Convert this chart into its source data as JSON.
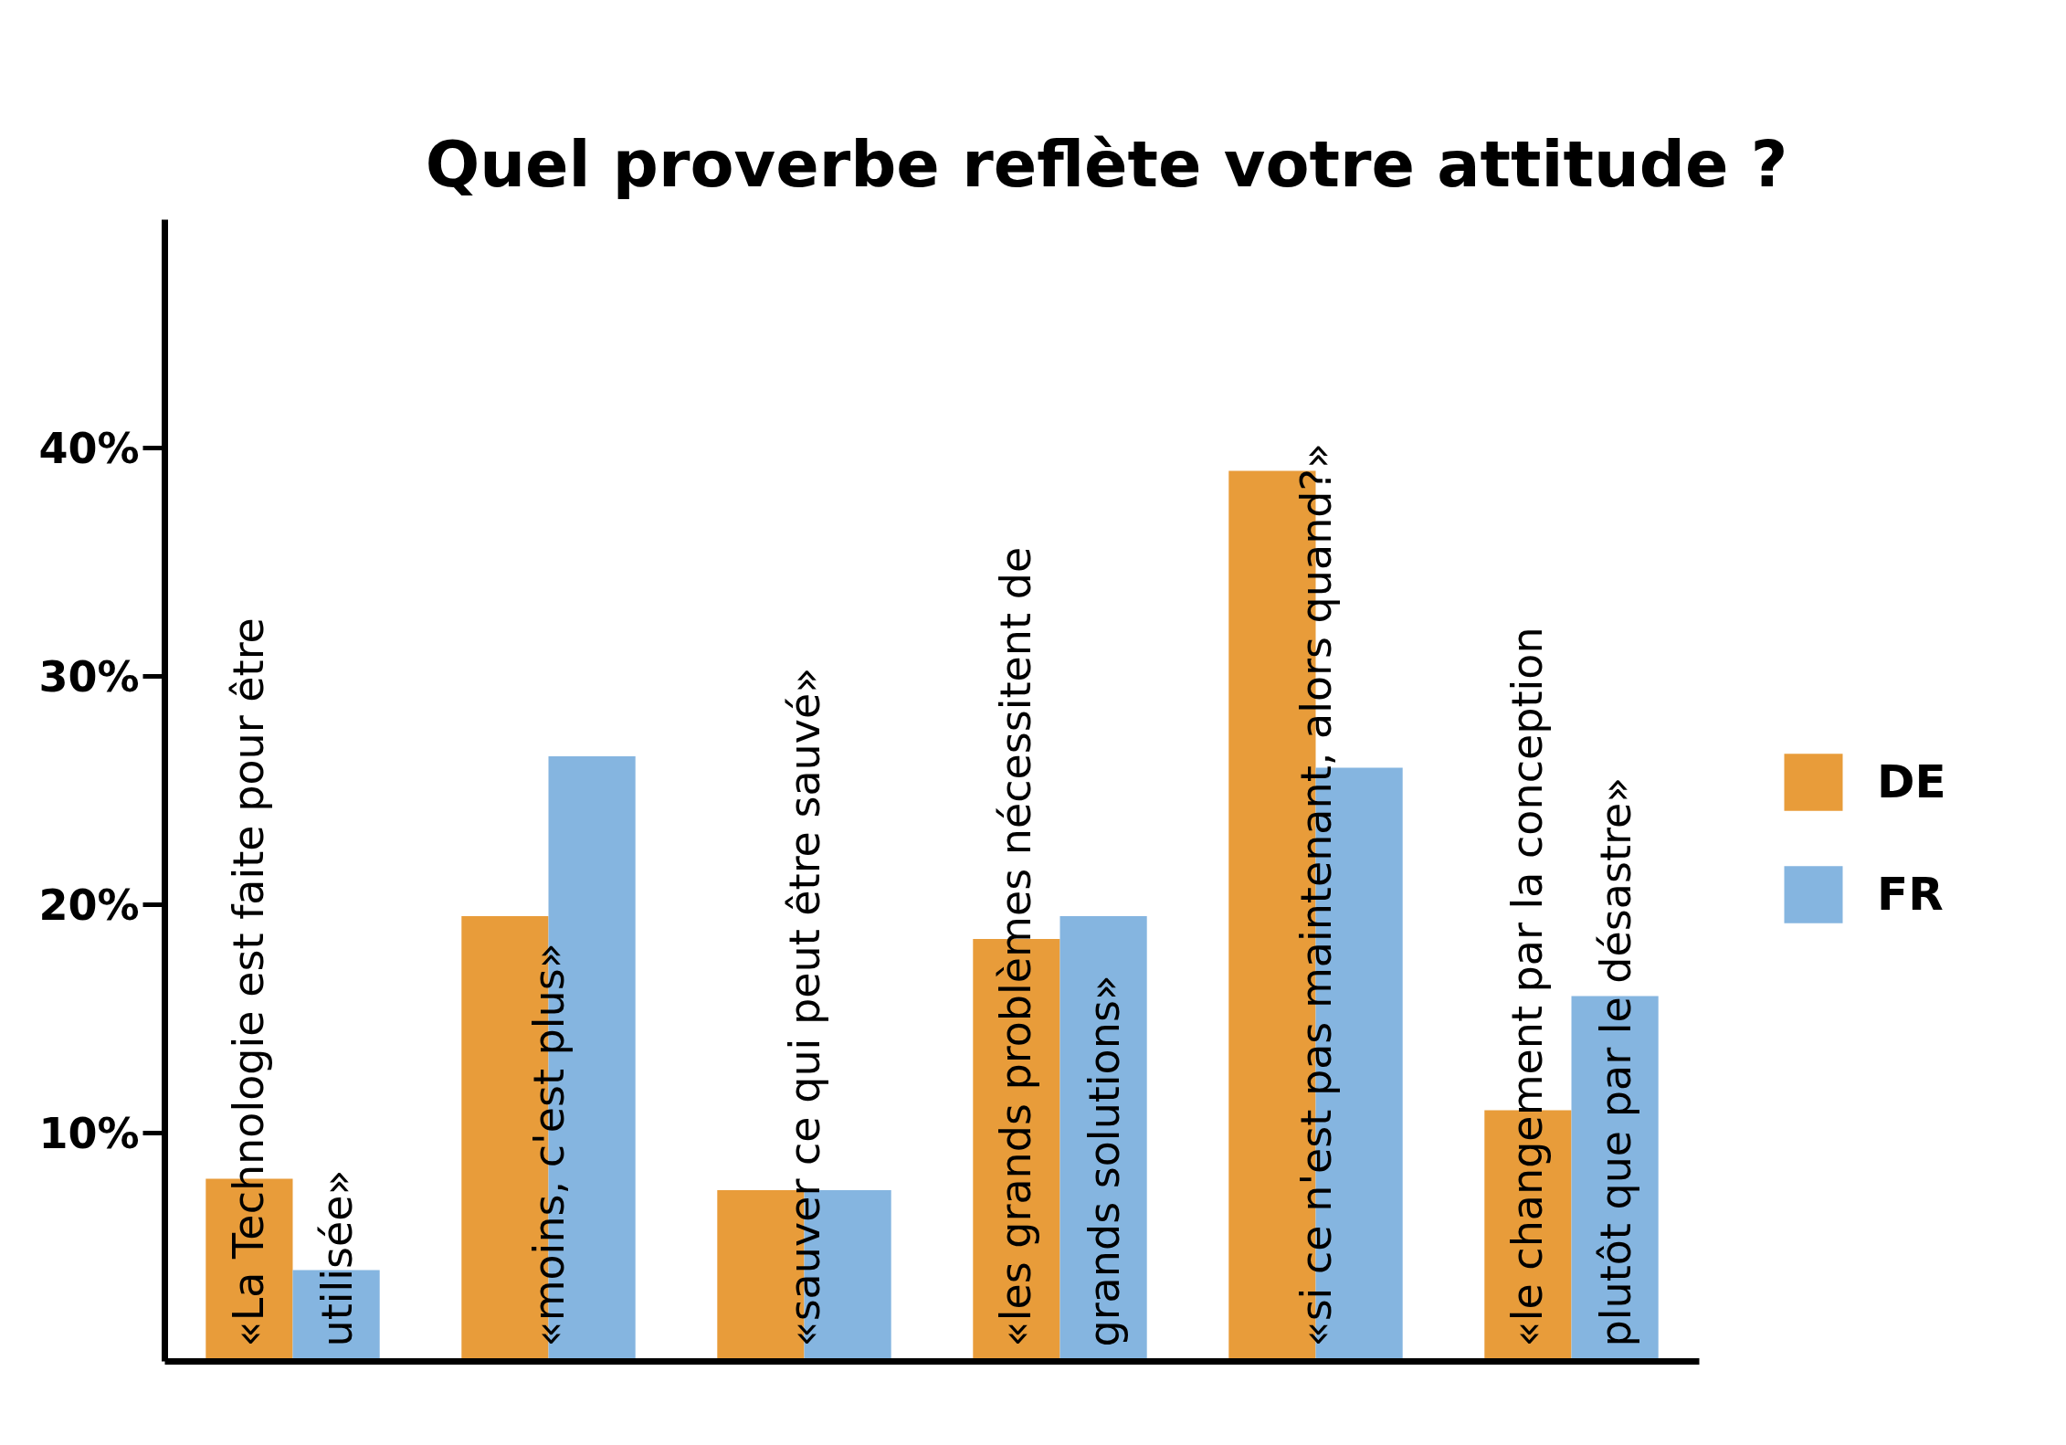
{
  "chart_data": {
    "type": "bar",
    "title": "Quel proverbe reflète votre attitude ?",
    "categories": [
      "«La Technologie est faite pour être\nutilisée»",
      "«moins, c'est plus»",
      "«sauver ce qui peut être sauvé»",
      "«les grands problèmes nécessitent de\ngrands solutions»",
      "«si ce n'est pas maintenant, alors quand?»",
      "«le changement par la conception\nplutôt que par le désastre»"
    ],
    "series": [
      {
        "name": "DE",
        "color": "#e89c3a",
        "values": [
          8,
          19.5,
          7.5,
          18.5,
          39,
          11
        ]
      },
      {
        "name": "FR",
        "color": "#85b5e0",
        "values": [
          4,
          26.5,
          7.5,
          19.5,
          26,
          16
        ]
      }
    ],
    "ylim": [
      0,
      50
    ],
    "yticks": [
      {
        "value": 10,
        "label": "10%"
      },
      {
        "value": 20,
        "label": "20%"
      },
      {
        "value": 30,
        "label": "30%"
      },
      {
        "value": 40,
        "label": "40%"
      }
    ],
    "legend": "right"
  }
}
